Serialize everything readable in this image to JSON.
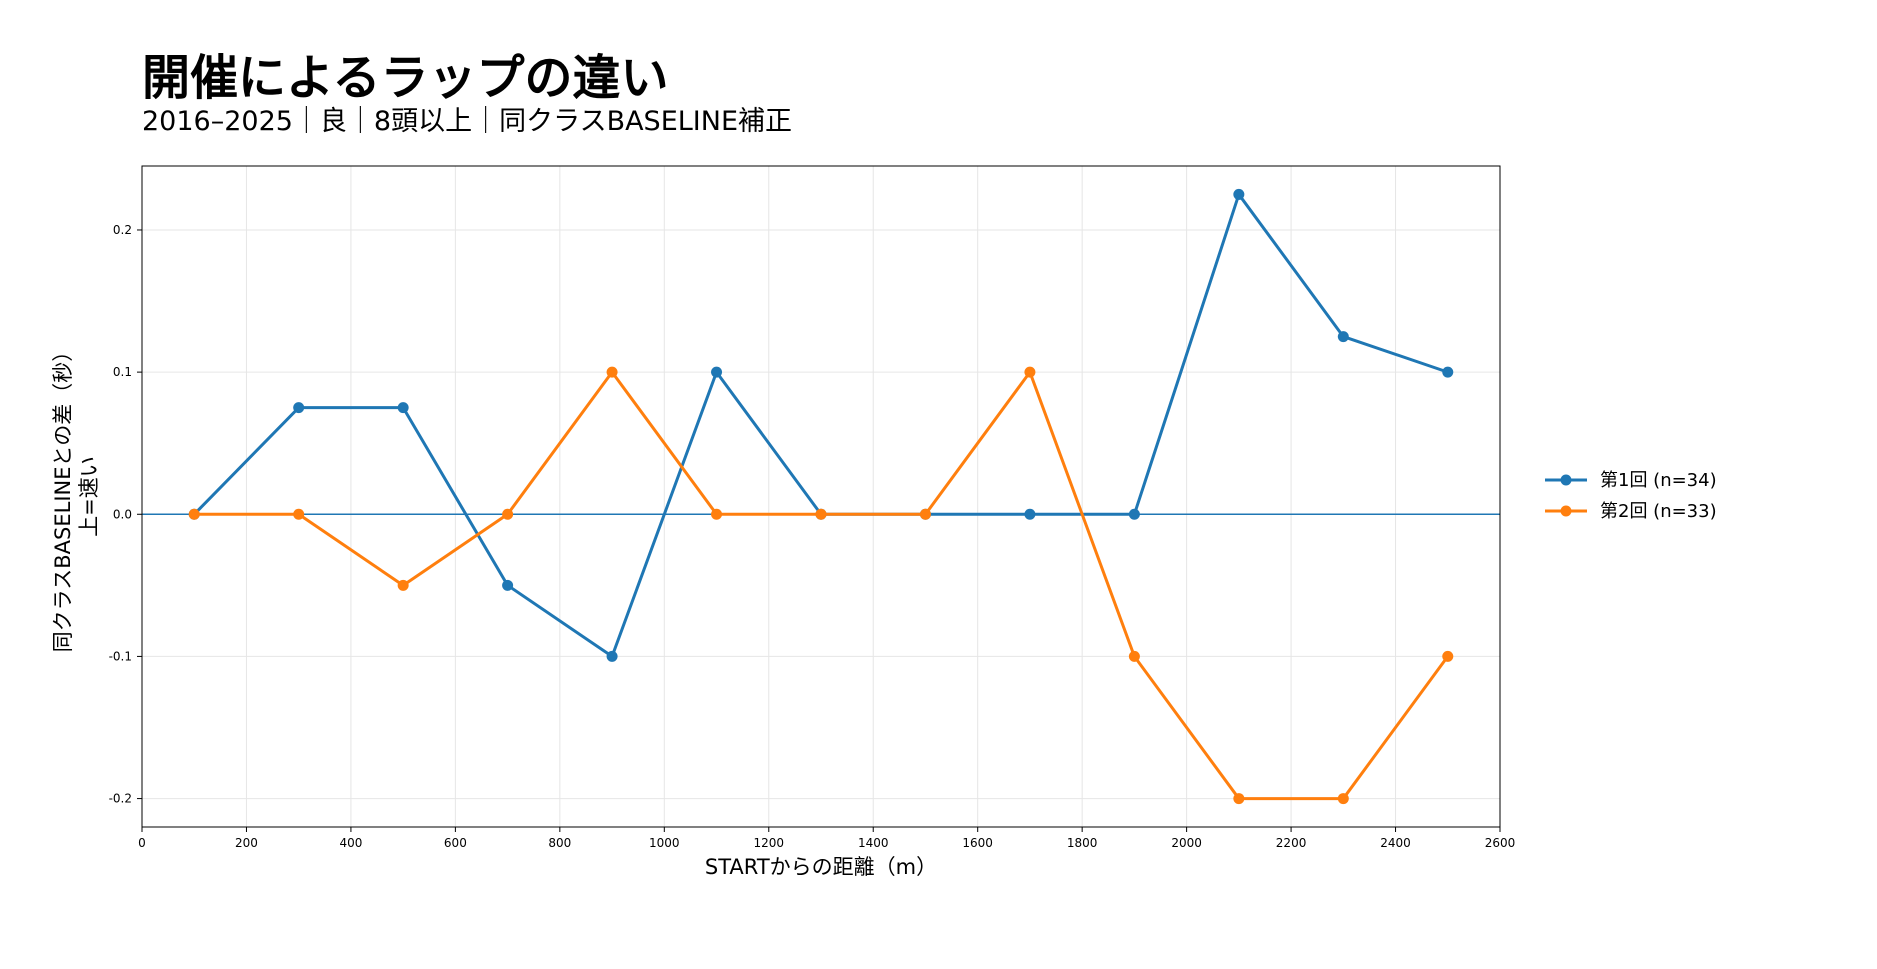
{
  "title": "開催によるラップの違い",
  "subtitle": "2016–2025｜良｜8頭以上｜同クラスBASELINE補正",
  "colors": {
    "series1": "#1f77b4",
    "series2": "#ff7f0e",
    "baseline": "#1f77b4",
    "grid": "#e6e6e6"
  },
  "chart_data": {
    "type": "line",
    "xlabel": "STARTからの距離（m）",
    "ylabel_line1": "同クラスBASELINEとの差（秒）",
    "ylabel_line2": "上=速い",
    "xlim": [
      0,
      2600
    ],
    "ylim": [
      -0.22,
      0.245
    ],
    "xticks": [
      0,
      200,
      400,
      600,
      800,
      1000,
      1200,
      1400,
      1600,
      1800,
      2000,
      2200,
      2400,
      2600
    ],
    "yticks": [
      -0.2,
      -0.1,
      0.0,
      0.1,
      0.2
    ],
    "grid": true,
    "legend_position": "right",
    "baseline_y": 0,
    "series": [
      {
        "name": "第1回 (n=34)",
        "x": [
          100,
          300,
          500,
          700,
          900,
          1100,
          1300,
          1500,
          1700,
          1900,
          2100,
          2300,
          2500
        ],
        "y": [
          0.0,
          0.075,
          0.075,
          -0.05,
          -0.1,
          0.1,
          0.0,
          0.0,
          0.0,
          0.0,
          0.225,
          0.125,
          0.1
        ]
      },
      {
        "name": "第2回 (n=33)",
        "x": [
          100,
          300,
          500,
          700,
          900,
          1100,
          1300,
          1500,
          1700,
          1900,
          2100,
          2300,
          2500
        ],
        "y": [
          0.0,
          0.0,
          -0.05,
          0.0,
          0.1,
          0.0,
          0.0,
          0.0,
          0.1,
          -0.1,
          -0.2,
          -0.2,
          -0.1
        ]
      }
    ]
  }
}
